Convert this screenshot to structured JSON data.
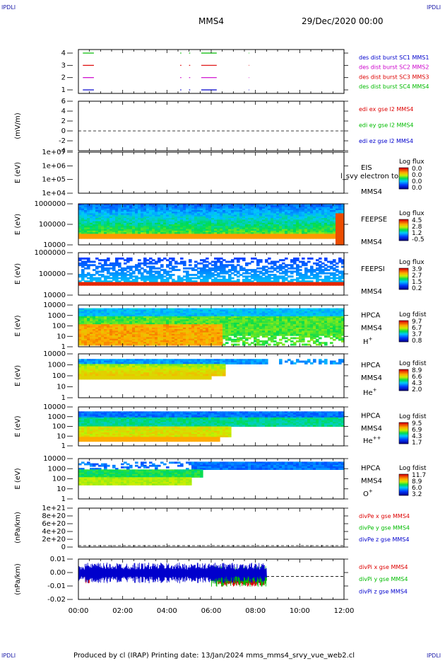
{
  "corner_label": "IPDLI",
  "header": {
    "spacecraft": "MMS4",
    "date": "29/Dec/2020 00:00"
  },
  "footer": {
    "text": "Produced by cl (IRAP)   Printing date: 13/Jan/2024   mms_mms4_srvy_vue_web2.cl"
  },
  "x_axis": {
    "ticks": [
      "00:00",
      "02:00",
      "04:00",
      "06:00",
      "08:00",
      "10:00",
      "12:00"
    ]
  },
  "chart_data": [
    {
      "type": "line",
      "id": "burst",
      "ylabel": "",
      "y_ticks": [
        "4",
        "3",
        "2",
        "1"
      ],
      "legend": [
        {
          "text": "des dist burst SC1 MMS1",
          "color": "#0000cc"
        },
        {
          "text": "des dist burst SC2 MMS2",
          "color": "#cc00cc"
        },
        {
          "text": "des dist burst SC3 MMS3",
          "color": "#dd0000"
        },
        {
          "text": "des dist burst SC4 MMS4",
          "color": "#00bb00"
        }
      ],
      "series": [
        {
          "level": 4,
          "color": "#00bb00",
          "intervals": [
            [
              0.2,
              0.7
            ],
            [
              4.6,
              4.65
            ],
            [
              5.0,
              5.05
            ],
            [
              5.55,
              6.25
            ],
            [
              7.7,
              7.72
            ]
          ]
        },
        {
          "level": 3,
          "color": "#dd0000",
          "intervals": [
            [
              0.2,
              0.7
            ],
            [
              4.6,
              4.65
            ],
            [
              5.0,
              5.05
            ],
            [
              5.55,
              6.25
            ],
            [
              7.7,
              7.72
            ]
          ]
        },
        {
          "level": 2,
          "color": "#cc00cc",
          "intervals": [
            [
              0.2,
              0.7
            ],
            [
              4.6,
              4.65
            ],
            [
              5.0,
              5.05
            ],
            [
              5.55,
              6.25
            ],
            [
              7.7,
              7.72
            ]
          ]
        },
        {
          "level": 1,
          "color": "#0000cc",
          "intervals": [
            [
              0.2,
              0.7
            ],
            [
              4.6,
              4.65
            ],
            [
              5.0,
              5.05
            ],
            [
              5.55,
              6.25
            ],
            [
              7.7,
              7.72
            ]
          ]
        }
      ]
    },
    {
      "type": "line",
      "id": "edi",
      "ylabel": "(mV/m)",
      "y_ticks": [
        "6",
        "4",
        "2",
        "0",
        "-2",
        "-4"
      ],
      "ylim": [
        -4,
        6
      ],
      "legend": [
        {
          "text": "edi ex gse l2 MMS4",
          "color": "#dd0000"
        },
        {
          "text": "edi ey gse l2 MMS4",
          "color": "#00bb00"
        },
        {
          "text": "edi ez gse l2 MMS4",
          "color": "#0000cc"
        }
      ]
    },
    {
      "type": "heatmap",
      "id": "eis",
      "ylabel": "E (eV)",
      "y_ticks": [
        "1e+07",
        "1e+06",
        "1e+05",
        "1e+04"
      ],
      "labels": [
        "EIS",
        "MMS4"
      ],
      "overlay_text": "l_svy electron to",
      "colorbar": {
        "title": "Log flux",
        "ticks": [
          "0.0",
          "0.0",
          "0.0",
          "0.0"
        ]
      }
    },
    {
      "type": "heatmap",
      "id": "feepse",
      "ylabel": "E (eV)",
      "y_ticks": [
        "1000000",
        "100000",
        "10000"
      ],
      "labels": [
        "FEEPSE",
        "MMS4"
      ],
      "colorbar": {
        "title": "Log flux",
        "ticks": [
          "4.5",
          "2.8",
          "1.2",
          "-0.5"
        ]
      }
    },
    {
      "type": "heatmap",
      "id": "feepsi",
      "ylabel": "E (eV)",
      "y_ticks": [
        "1000000",
        "100000",
        "10000"
      ],
      "labels": [
        "FEEPSI",
        "MMS4"
      ],
      "colorbar": {
        "title": "Log flux",
        "ticks": [
          "3.9",
          "2.7",
          "1.5",
          "0.2"
        ]
      }
    },
    {
      "type": "heatmap",
      "id": "hpca_h",
      "ylabel": "E (eV)",
      "y_ticks": [
        "10000",
        "1000",
        "100",
        "10",
        "1"
      ],
      "labels": [
        "HPCA",
        "MMS4"
      ],
      "species": "H",
      "species_sup": "+",
      "colorbar": {
        "title": "Log fdist",
        "ticks": [
          "9.7",
          "6.7",
          "3.7",
          "0.8"
        ]
      }
    },
    {
      "type": "heatmap",
      "id": "hpca_he",
      "ylabel": "E (eV)",
      "y_ticks": [
        "10000",
        "1000",
        "100",
        "10",
        "1"
      ],
      "labels": [
        "HPCA",
        "MMS4"
      ],
      "species": "He",
      "species_sup": "+",
      "colorbar": {
        "title": "Log fdist",
        "ticks": [
          "8.9",
          "6.6",
          "4.3",
          "2.0"
        ]
      }
    },
    {
      "type": "heatmap",
      "id": "hpca_hepp",
      "ylabel": "E (eV)",
      "y_ticks": [
        "10000",
        "1000",
        "100",
        "10",
        "1"
      ],
      "labels": [
        "HPCA",
        "MMS4"
      ],
      "species": "He",
      "species_sup": "++",
      "colorbar": {
        "title": "Log fdist",
        "ticks": [
          "9.5",
          "6.9",
          "4.3",
          "1.7"
        ]
      }
    },
    {
      "type": "heatmap",
      "id": "hpca_o",
      "ylabel": "E (eV)",
      "y_ticks": [
        "10000",
        "1000",
        "100",
        "10",
        "1"
      ],
      "labels": [
        "HPCA",
        "MMS4"
      ],
      "species": "O",
      "species_sup": "+",
      "colorbar": {
        "title": "Log fdist",
        "ticks": [
          "11.7",
          "8.9",
          "6.0",
          "3.2"
        ]
      }
    },
    {
      "type": "line",
      "id": "divpe",
      "ylabel": "(nPa/km)",
      "y_ticks": [
        "1e+21",
        "8e+20",
        "6e+20",
        "4e+20",
        "2e+20",
        "0"
      ],
      "ylim": [
        0,
        1e+21
      ],
      "legend": [
        {
          "text": "divPe x gse MMS4",
          "color": "#dd0000"
        },
        {
          "text": "divPe y gse MMS4",
          "color": "#00bb00"
        },
        {
          "text": "divPe z gse MMS4",
          "color": "#0000cc"
        }
      ]
    },
    {
      "type": "line",
      "id": "divpi",
      "ylabel": "(nPa/km)",
      "y_ticks": [
        "0.01",
        "0.00",
        "-0.01",
        "-0.02"
      ],
      "ylim": [
        -0.02,
        0.015
      ],
      "legend": [
        {
          "text": "divPi x gse MMS4",
          "color": "#dd0000"
        },
        {
          "text": "divPi y gse MMS4",
          "color": "#00bb00"
        },
        {
          "text": "divPi z gse MMS4",
          "color": "#0000cc"
        }
      ],
      "series": [
        {
          "name": "divPi x gse MMS4",
          "color": "#dd0000",
          "segments": [
            [
              0.3,
              0.5,
              0.0,
              0.004
            ],
            [
              6.3,
              8.4,
              -0.003,
              0.004
            ]
          ]
        },
        {
          "name": "divPi y gse MMS4",
          "color": "#00bb00",
          "segments": [
            [
              6.0,
              8.5,
              0.0,
              0.006
            ]
          ]
        },
        {
          "name": "divPi z gse MMS4",
          "color": "#0000cc",
          "segments": [
            [
              0.0,
              8.5,
              0.003,
              0.006
            ]
          ]
        }
      ]
    }
  ]
}
